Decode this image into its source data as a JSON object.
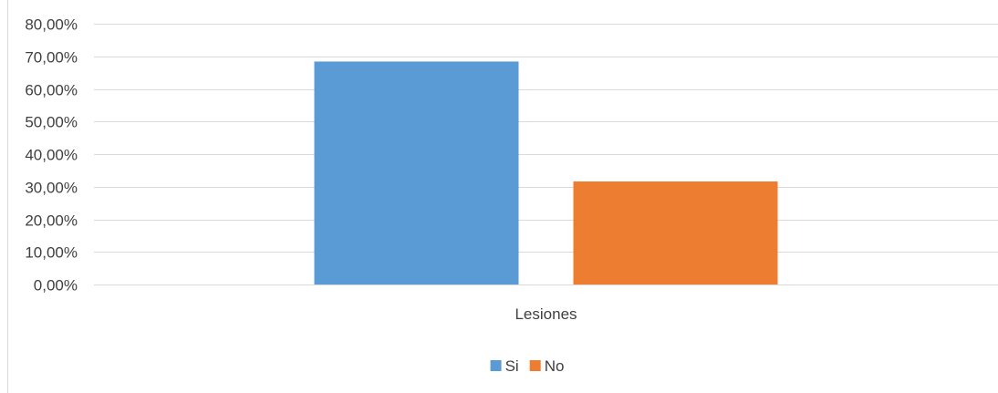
{
  "chart_data": {
    "type": "bar",
    "categories": [
      "Lesiones"
    ],
    "series": [
      {
        "name": "Si",
        "values": [
          68.4
        ],
        "color": "#5B9BD5"
      },
      {
        "name": "No",
        "values": [
          31.6
        ],
        "color": "#ED7D31"
      }
    ],
    "ylim": [
      0,
      80
    ],
    "yticks": [
      0,
      10,
      20,
      30,
      40,
      50,
      60,
      70,
      80
    ],
    "ytick_labels": [
      "0,00%",
      "10,00%",
      "20,00%",
      "30,00%",
      "40,00%",
      "50,00%",
      "60,00%",
      "70,00%",
      "80,00%"
    ],
    "grid": true,
    "legend_position": "bottom",
    "gridline_color": "#d9d9d9",
    "text_color": "#404040"
  }
}
